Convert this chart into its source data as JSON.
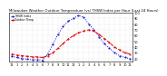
{
  "title": "Milwaukee Weather Outdoor Temperature (vs) THSW Index per Hour (Last 24 Hours)",
  "outdoor_temp": [
    28,
    26,
    25,
    24,
    23,
    23,
    22,
    25,
    30,
    38,
    46,
    54,
    60,
    65,
    68,
    70,
    68,
    62,
    55,
    48,
    40,
    35,
    30,
    28
  ],
  "thsw_index": [
    24,
    22,
    20,
    19,
    18,
    18,
    17,
    28,
    45,
    62,
    76,
    85,
    90,
    95,
    92,
    80,
    70,
    58,
    46,
    38,
    30,
    25,
    22,
    20
  ],
  "hours": [
    0,
    1,
    2,
    3,
    4,
    5,
    6,
    7,
    8,
    9,
    10,
    11,
    12,
    13,
    14,
    15,
    16,
    17,
    18,
    19,
    20,
    21,
    22,
    23
  ],
  "xlabels": [
    "12",
    "1",
    "2",
    "3",
    "4",
    "5",
    "6",
    "7",
    "8",
    "9",
    "10",
    "11",
    "12",
    "1",
    "2",
    "3",
    "4",
    "5",
    "6",
    "7",
    "8",
    "9",
    "10",
    "11"
  ],
  "ylim": [
    15,
    100
  ],
  "yticks": [
    20,
    30,
    40,
    50,
    60,
    70,
    80,
    90,
    100
  ],
  "temp_color": "#dd0000",
  "thsw_color": "#0000dd",
  "bg_color": "#ffffff",
  "grid_color": "#cccccc",
  "title_fontsize": 2.8,
  "tick_fontsize": 2.5,
  "legend_fontsize": 2.2,
  "line_width": 0.7,
  "marker_size": 1.0
}
